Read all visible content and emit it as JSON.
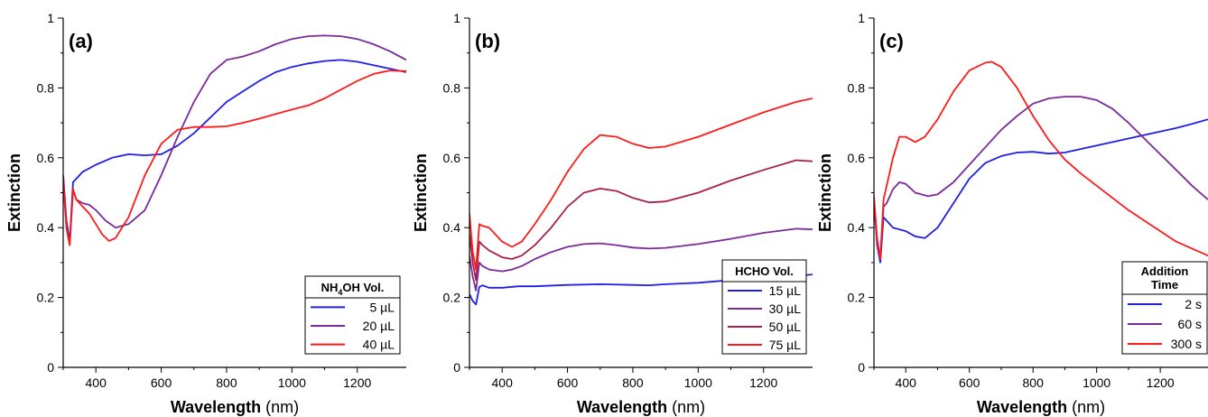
{
  "chart_data": [
    {
      "type": "line",
      "panel_label": "(a)",
      "ylabel": "Extinction",
      "xlabel_bold": "Wavelength",
      "xlabel_unit": " (nm)",
      "xlim": [
        300,
        1350
      ],
      "ylim": [
        0,
        1
      ],
      "xticks": [
        400,
        600,
        800,
        1000,
        1200
      ],
      "xtick_labels": [
        "400",
        "600",
        "800",
        "1000",
        "1200"
      ],
      "yticks": [
        0,
        0.2,
        0.4,
        0.6,
        0.8,
        1
      ],
      "ytick_labels": [
        "0",
        "0.2",
        "0.4",
        "0.6",
        "0.8",
        "1"
      ],
      "legend_title_main": "NH",
      "legend_title_sub": "4",
      "legend_title_rest": "OH Vol.",
      "legend_placement": "bottom-right",
      "grid": false,
      "series": [
        {
          "name": "5 µL",
          "color": "#1f1fe6",
          "x": [
            300,
            310,
            320,
            330,
            340,
            360,
            380,
            400,
            450,
            500,
            550,
            600,
            650,
            700,
            750,
            800,
            850,
            900,
            950,
            1000,
            1050,
            1100,
            1150,
            1200,
            1250,
            1300,
            1350
          ],
          "y": [
            0.55,
            0.42,
            0.36,
            0.53,
            0.54,
            0.56,
            0.57,
            0.58,
            0.6,
            0.61,
            0.607,
            0.61,
            0.635,
            0.67,
            0.715,
            0.76,
            0.79,
            0.82,
            0.845,
            0.86,
            0.87,
            0.877,
            0.88,
            0.875,
            0.865,
            0.855,
            0.845
          ]
        },
        {
          "name": "20 µL",
          "color": "#7a2a9a",
          "x": [
            300,
            310,
            320,
            330,
            340,
            360,
            380,
            400,
            430,
            460,
            500,
            550,
            600,
            650,
            700,
            750,
            800,
            850,
            900,
            950,
            1000,
            1050,
            1100,
            1150,
            1200,
            1250,
            1300,
            1350
          ],
          "y": [
            0.55,
            0.4,
            0.35,
            0.51,
            0.48,
            0.47,
            0.465,
            0.45,
            0.42,
            0.4,
            0.41,
            0.45,
            0.55,
            0.66,
            0.76,
            0.84,
            0.88,
            0.89,
            0.905,
            0.925,
            0.94,
            0.948,
            0.95,
            0.948,
            0.94,
            0.925,
            0.905,
            0.88
          ]
        },
        {
          "name": "40 µL",
          "color": "#ff1a1a",
          "x": [
            300,
            310,
            320,
            330,
            340,
            360,
            380,
            400,
            420,
            440,
            460,
            500,
            550,
            600,
            650,
            700,
            750,
            800,
            850,
            900,
            950,
            1000,
            1050,
            1100,
            1150,
            1200,
            1250,
            1300,
            1350
          ],
          "y": [
            0.53,
            0.4,
            0.35,
            0.51,
            0.48,
            0.46,
            0.44,
            0.41,
            0.38,
            0.362,
            0.37,
            0.43,
            0.55,
            0.64,
            0.68,
            0.688,
            0.688,
            0.69,
            0.7,
            0.712,
            0.725,
            0.738,
            0.75,
            0.77,
            0.795,
            0.82,
            0.84,
            0.85,
            0.848
          ]
        }
      ]
    },
    {
      "type": "line",
      "panel_label": "(b)",
      "ylabel": "Extinction",
      "xlabel_bold": "Wavelength",
      "xlabel_unit": " (nm)",
      "xlim": [
        300,
        1350
      ],
      "ylim": [
        0,
        1
      ],
      "xticks": [
        400,
        600,
        800,
        1000,
        1200
      ],
      "xtick_labels": [
        "400",
        "600",
        "800",
        "1000",
        "1200"
      ],
      "yticks": [
        0,
        0.2,
        0.4,
        0.6,
        0.8,
        1
      ],
      "ytick_labels": [
        "0",
        "0.2",
        "0.4",
        "0.6",
        "0.8",
        "1"
      ],
      "legend_title": "HCHO Vol.",
      "legend_placement": "bottom-right",
      "grid": false,
      "series": [
        {
          "name": "15 µL",
          "color": "#1f1fe6",
          "x": [
            300,
            310,
            320,
            330,
            340,
            360,
            400,
            450,
            500,
            600,
            700,
            800,
            850,
            900,
            1000,
            1100,
            1200,
            1300,
            1350
          ],
          "y": [
            0.21,
            0.19,
            0.18,
            0.23,
            0.235,
            0.228,
            0.228,
            0.232,
            0.232,
            0.236,
            0.238,
            0.236,
            0.235,
            0.238,
            0.242,
            0.25,
            0.256,
            0.262,
            0.266
          ]
        },
        {
          "name": "30 µL",
          "color": "#7a2a9a",
          "x": [
            300,
            310,
            320,
            330,
            340,
            360,
            400,
            430,
            460,
            500,
            550,
            600,
            650,
            700,
            750,
            800,
            850,
            900,
            1000,
            1100,
            1200,
            1300,
            1350
          ],
          "y": [
            0.32,
            0.26,
            0.22,
            0.3,
            0.29,
            0.28,
            0.275,
            0.28,
            0.29,
            0.31,
            0.33,
            0.345,
            0.353,
            0.355,
            0.35,
            0.343,
            0.34,
            0.342,
            0.353,
            0.368,
            0.385,
            0.397,
            0.395
          ]
        },
        {
          "name": "50 µL",
          "color": "#a8204a",
          "x": [
            300,
            310,
            320,
            330,
            340,
            360,
            400,
            430,
            460,
            500,
            550,
            600,
            650,
            700,
            750,
            800,
            850,
            900,
            1000,
            1100,
            1200,
            1300,
            1350
          ],
          "y": [
            0.38,
            0.3,
            0.25,
            0.36,
            0.35,
            0.335,
            0.315,
            0.31,
            0.32,
            0.35,
            0.4,
            0.46,
            0.5,
            0.512,
            0.505,
            0.485,
            0.472,
            0.475,
            0.5,
            0.535,
            0.565,
            0.593,
            0.59
          ]
        },
        {
          "name": "75 µL",
          "color": "#ff1a1a",
          "x": [
            300,
            310,
            320,
            330,
            340,
            360,
            400,
            430,
            460,
            500,
            550,
            600,
            650,
            700,
            750,
            800,
            850,
            900,
            1000,
            1100,
            1200,
            1300,
            1350
          ],
          "y": [
            0.44,
            0.33,
            0.28,
            0.41,
            0.405,
            0.4,
            0.36,
            0.345,
            0.36,
            0.41,
            0.48,
            0.56,
            0.625,
            0.665,
            0.66,
            0.64,
            0.628,
            0.632,
            0.66,
            0.695,
            0.73,
            0.76,
            0.77
          ]
        }
      ]
    },
    {
      "type": "line",
      "panel_label": "(c)",
      "ylabel": "Extinction",
      "xlabel_bold": "Wavelength",
      "xlabel_unit": " (nm)",
      "xlim": [
        300,
        1350
      ],
      "ylim": [
        0,
        1
      ],
      "xticks": [
        400,
        600,
        800,
        1000,
        1200
      ],
      "xtick_labels": [
        "400",
        "600",
        "800",
        "1000",
        "1200"
      ],
      "yticks": [
        0,
        0.2,
        0.4,
        0.6,
        0.8,
        1
      ],
      "ytick_labels": [
        "0",
        "0.2",
        "0.4",
        "0.6",
        "0.8",
        "1"
      ],
      "legend_title_line1": "Addition",
      "legend_title_line2": "Time",
      "legend_placement": "bottom-right",
      "grid": false,
      "series": [
        {
          "name": "2 s",
          "color": "#1f1fe6",
          "x": [
            300,
            310,
            320,
            330,
            340,
            360,
            400,
            430,
            460,
            500,
            550,
            600,
            650,
            700,
            750,
            800,
            850,
            900,
            950,
            1000,
            1050,
            1100,
            1150,
            1200,
            1250,
            1300,
            1350
          ],
          "y": [
            0.48,
            0.35,
            0.3,
            0.43,
            0.42,
            0.4,
            0.39,
            0.375,
            0.37,
            0.4,
            0.47,
            0.54,
            0.585,
            0.605,
            0.615,
            0.617,
            0.612,
            0.615,
            0.625,
            0.635,
            0.645,
            0.655,
            0.665,
            0.675,
            0.685,
            0.697,
            0.71
          ]
        },
        {
          "name": "60 s",
          "color": "#7a2a9a",
          "x": [
            300,
            310,
            320,
            330,
            340,
            360,
            380,
            400,
            430,
            470,
            500,
            550,
            600,
            650,
            700,
            750,
            800,
            850,
            900,
            950,
            1000,
            1050,
            1100,
            1150,
            1200,
            1250,
            1300,
            1350
          ],
          "y": [
            0.48,
            0.36,
            0.31,
            0.46,
            0.47,
            0.51,
            0.53,
            0.525,
            0.5,
            0.49,
            0.495,
            0.53,
            0.58,
            0.63,
            0.68,
            0.72,
            0.755,
            0.77,
            0.775,
            0.775,
            0.765,
            0.74,
            0.7,
            0.655,
            0.61,
            0.565,
            0.52,
            0.48
          ]
        },
        {
          "name": "300 s",
          "color": "#ff1a1a",
          "x": [
            300,
            310,
            320,
            330,
            340,
            360,
            380,
            400,
            430,
            460,
            500,
            550,
            600,
            650,
            670,
            700,
            750,
            800,
            850,
            900,
            950,
            1000,
            1050,
            1100,
            1150,
            1200,
            1250,
            1300,
            1350
          ],
          "y": [
            0.49,
            0.37,
            0.31,
            0.48,
            0.52,
            0.6,
            0.66,
            0.66,
            0.645,
            0.66,
            0.71,
            0.79,
            0.85,
            0.872,
            0.875,
            0.86,
            0.8,
            0.72,
            0.65,
            0.595,
            0.555,
            0.52,
            0.485,
            0.45,
            0.42,
            0.39,
            0.36,
            0.34,
            0.32
          ]
        }
      ]
    }
  ]
}
